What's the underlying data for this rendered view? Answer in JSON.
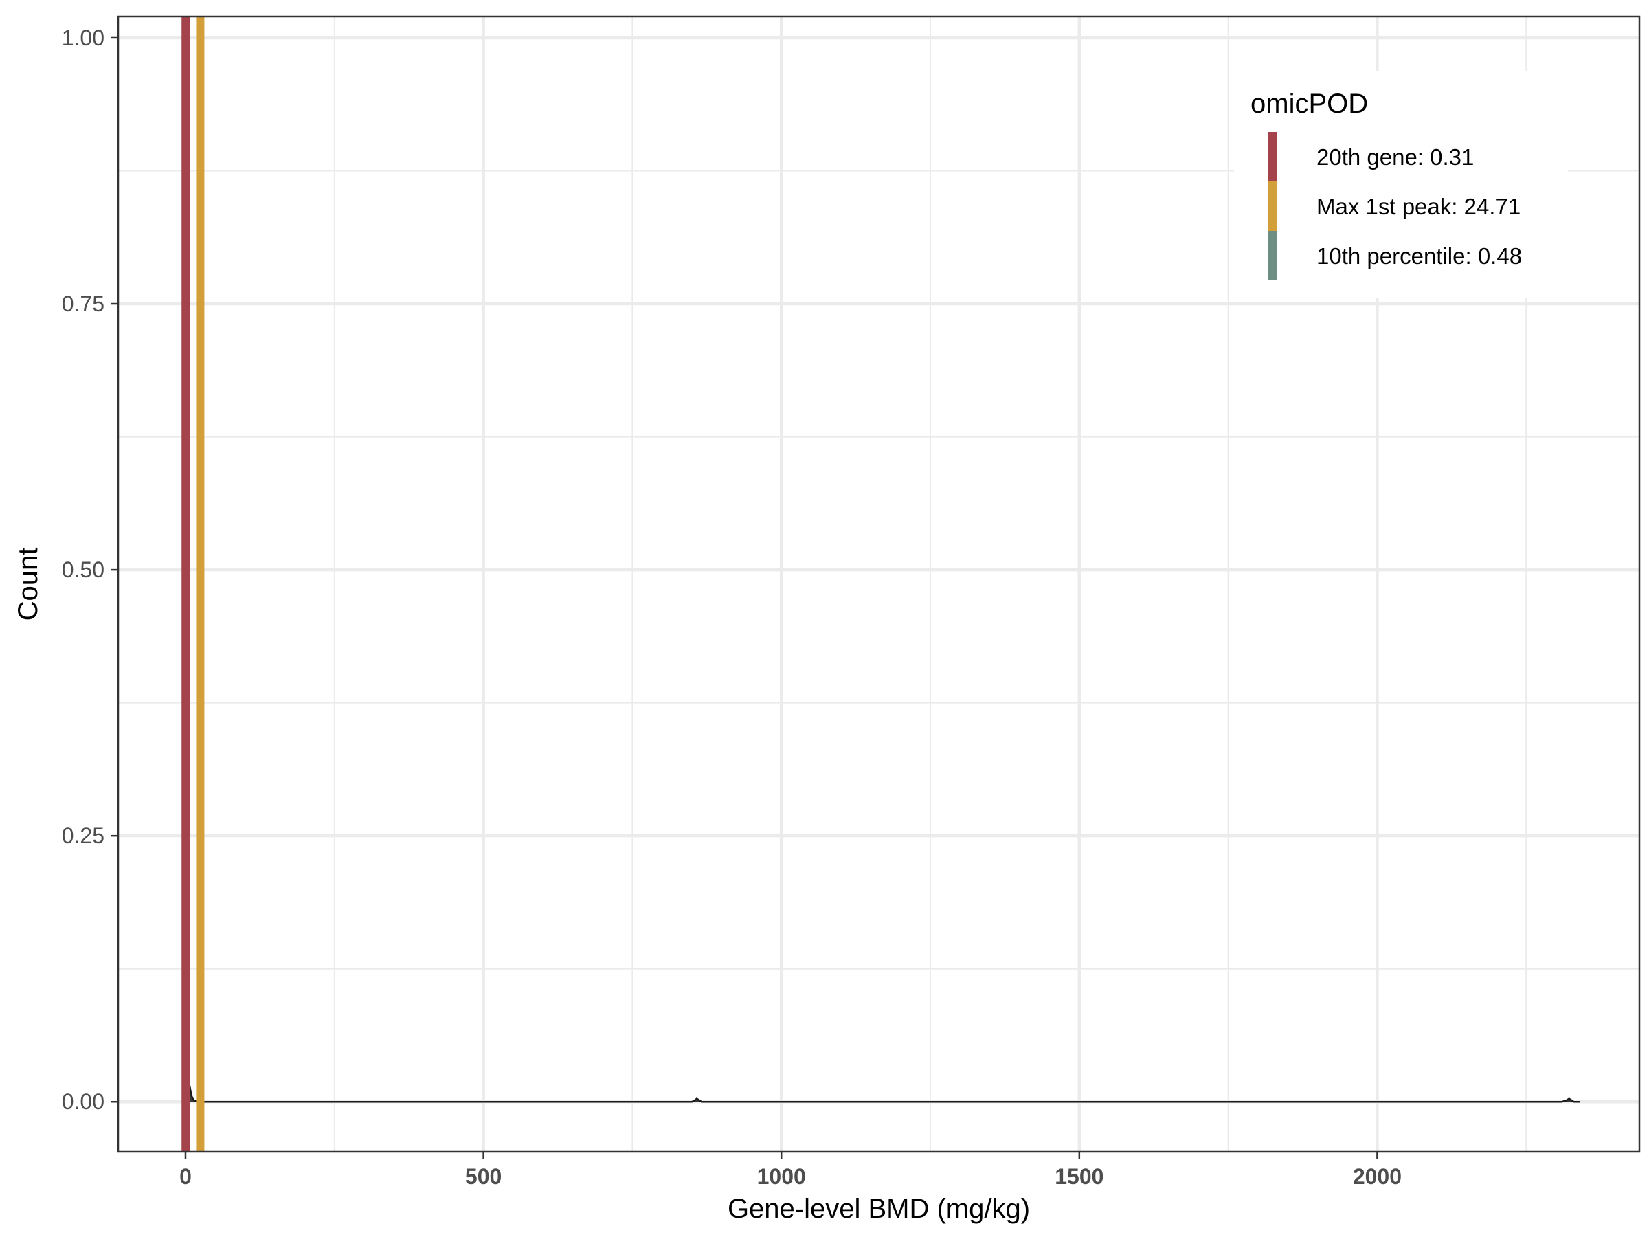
{
  "chart_data": {
    "type": "area",
    "title": "",
    "xlabel": "Gene-level BMD (mg/kg)",
    "ylabel": "Count",
    "xlim": [
      -113,
      2440
    ],
    "ylim": [
      -0.047,
      1.02
    ],
    "x_ticks": [
      0,
      500,
      1000,
      1500,
      2000
    ],
    "x_tick_labels": [
      "0",
      "500",
      "1000",
      "1500",
      "2000"
    ],
    "y_ticks": [
      0.0,
      0.25,
      0.5,
      0.75,
      1.0
    ],
    "y_tick_labels": [
      "0.00",
      "0.25",
      "0.50",
      "0.75",
      "1.00"
    ],
    "x_minor_ticks": [
      250,
      750,
      1250,
      1750,
      2250
    ],
    "y_minor_ticks": [
      0.125,
      0.375,
      0.625,
      0.875
    ],
    "grid": true,
    "density": {
      "x": [
        0,
        1,
        3,
        5,
        8,
        10,
        12,
        15,
        20,
        30,
        40,
        60,
        100,
        200,
        400,
        600,
        800,
        850,
        855,
        858,
        862,
        866,
        870,
        900,
        1200,
        1600,
        2000,
        2300,
        2310,
        2318,
        2322,
        2326,
        2330,
        2340
      ],
      "y": [
        0.0,
        0.035,
        0.028,
        0.02,
        0.012,
        0.006,
        0.003,
        0.001,
        0.0,
        0.0,
        0.0,
        0.0,
        0.0,
        0.0,
        0.0,
        0.0,
        0.0,
        0.0,
        0.0015,
        0.003,
        0.0015,
        0.0,
        0.0,
        0.0,
        0.0,
        0.0,
        0.0,
        0.0,
        0.0,
        0.0015,
        0.003,
        0.0015,
        0.0,
        0.0
      ],
      "color": "#1a1a1a"
    },
    "reference_lines": [
      {
        "name": "20th gene: 0.31",
        "x": 0.31,
        "color": "#A4434B"
      },
      {
        "name": "Max 1st peak: 24.71",
        "x": 24.71,
        "color": "#D39F38"
      },
      {
        "name": "10th percentile: 0.48",
        "x": 0.48,
        "color": "#6E8E84"
      }
    ],
    "legend": {
      "title": "omicPOD",
      "position": "top-right"
    }
  }
}
